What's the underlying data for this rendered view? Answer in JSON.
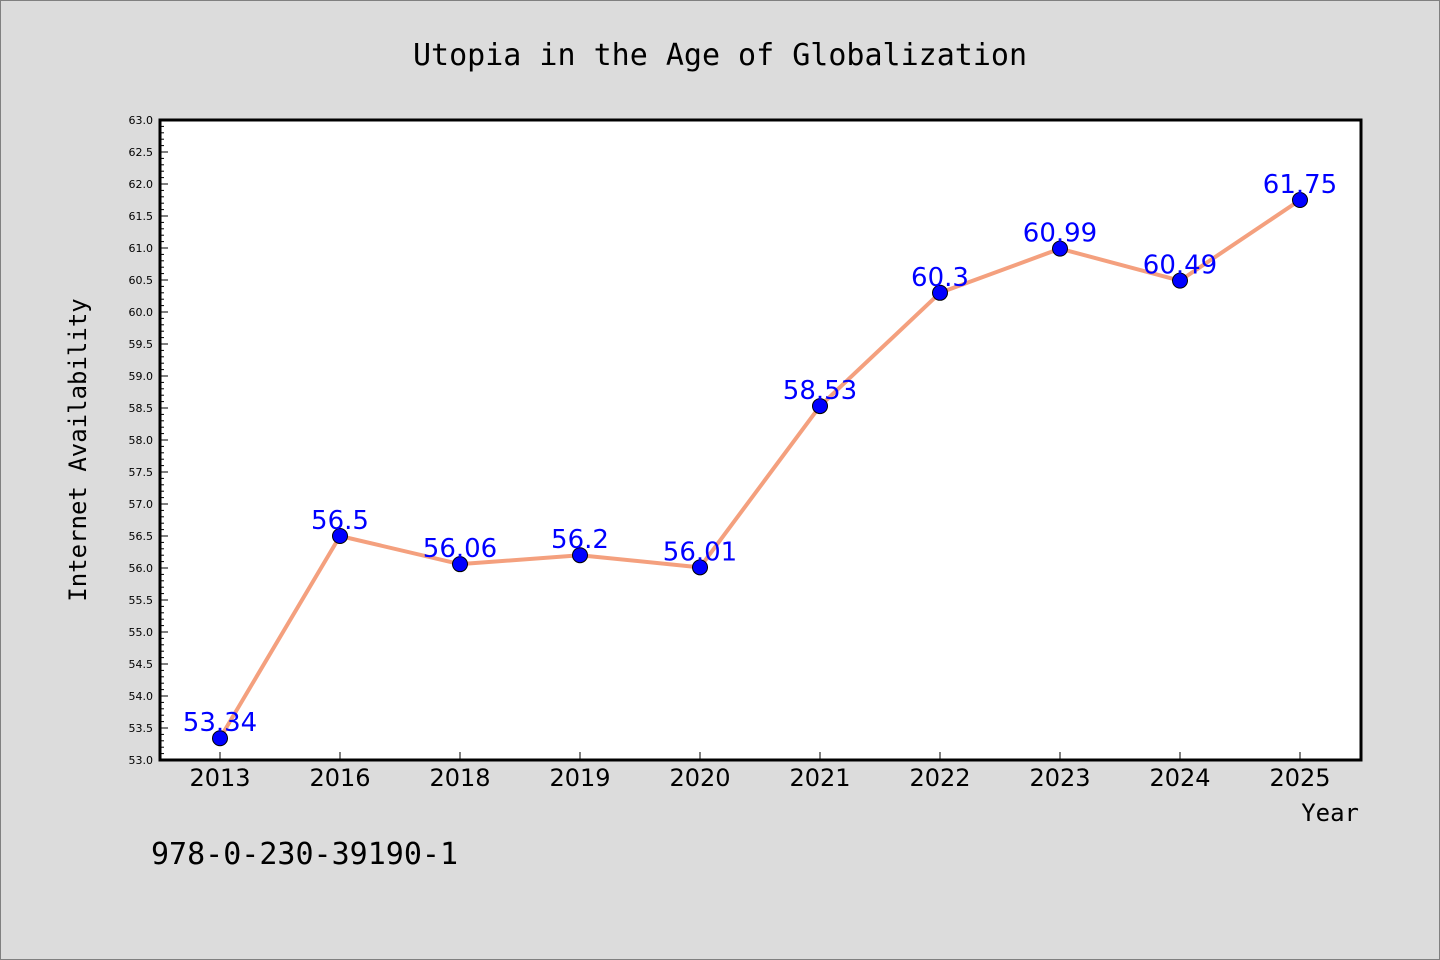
{
  "chart_data": {
    "type": "line",
    "title": "Utopia in the Age of Globalization",
    "xlabel": "Year",
    "ylabel": "Internet Availability",
    "categories": [
      "2013",
      "2016",
      "2018",
      "2019",
      "2020",
      "2021",
      "2022",
      "2023",
      "2024",
      "2025"
    ],
    "series": [
      {
        "values": [
          53.34,
          56.5,
          56.06,
          56.2,
          56.01,
          58.53,
          60.3,
          60.99,
          60.49,
          61.75
        ],
        "labels": [
          "53.34",
          "56.5",
          "56.06",
          "56.2",
          "56.01",
          "58.53",
          "60.3",
          "60.99",
          "60.49",
          "61.75"
        ],
        "line_color": "#f4a07e",
        "marker_color": "#0000ff"
      }
    ],
    "ylim": [
      53.0,
      63.0
    ],
    "yticks": [
      "53.0",
      "53.5",
      "54.0",
      "54.5",
      "55.0",
      "55.5",
      "56.0",
      "56.5",
      "57.0",
      "57.5",
      "58.0",
      "58.5",
      "59.0",
      "59.5",
      "60.0",
      "60.5",
      "61.0",
      "61.5",
      "62.0",
      "62.5",
      "63.0"
    ],
    "grid": false,
    "legend": "none",
    "label_color": "#0000ff"
  },
  "caption": "978-0-230-39190-1"
}
